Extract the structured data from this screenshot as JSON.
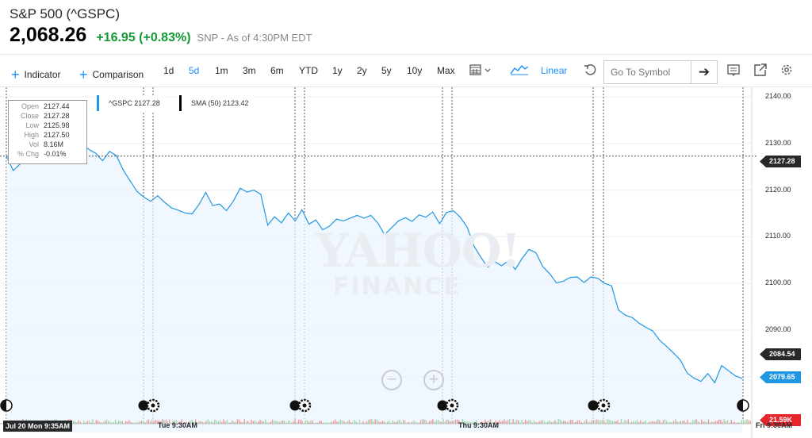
{
  "header": {
    "title": "S&P 500 (^GSPC)",
    "price": "2,068.26",
    "change": "+16.95 (+0.83%)",
    "as_of": "SNP - As of 4:30PM EDT"
  },
  "toolbar": {
    "indicator": "Indicator",
    "comparison": "Comparison",
    "ranges": [
      "1d",
      "5d",
      "1m",
      "3m",
      "6m",
      "YTD",
      "1y",
      "2y",
      "5y",
      "10y",
      "Max"
    ],
    "active_range": "5d",
    "scale": "Linear",
    "search_placeholder": "Go To Symbol",
    "go_arrow": "➔"
  },
  "tooltip": {
    "open_label": "Open",
    "open": "2127.44",
    "close_label": "Close",
    "close": "2127.28",
    "low_label": "Low",
    "low": "2125.98",
    "high_label": "High",
    "high": "2127.50",
    "vol_label": "Vol",
    "vol": "8.16M",
    "pct_label": "% Chg",
    "pct": "-0.01%"
  },
  "legend": {
    "price": "^GSPC 2127.28",
    "sma": "SMA (50) 2123.42"
  },
  "watermark": {
    "line1": "YAHOO!",
    "line2": "FINANCE"
  },
  "zoom": {
    "out": "−",
    "in": "+"
  },
  "flags": {
    "crosshair": "2127.28",
    "sma_last": "2084.54",
    "last_price": "2079.65",
    "volume": "21.59K"
  },
  "colors": {
    "line": "#1f97e3",
    "positive": "#109a33",
    "flag_dark": "#26282a",
    "flag_blue": "#1f97e3",
    "flag_red": "#e6252c"
  },
  "chart_data": {
    "type": "line",
    "title": "",
    "xlabel": "",
    "ylabel": "",
    "ylim": [
      2070,
      2140
    ],
    "y_ticks": [
      2140.0,
      2130.0,
      2120.0,
      2110.0,
      2100.0,
      2090.0,
      2080.0,
      2070.0
    ],
    "x_tick_labels": [
      "Jul 20 Mon 9:35AM",
      "Tue 9:30AM",
      "Thu 9:30AM",
      "Fri 9:30AM"
    ],
    "grid": true,
    "crosshair": 2127.28,
    "series": [
      {
        "name": "^GSPC",
        "color": "#1f97e3",
        "values": [
          2127.3,
          2124.2,
          2125.6,
          2127.9,
          2129.4,
          2128.6,
          2130.5,
          2129.7,
          2131.2,
          2130.3,
          2132.0,
          2129.9,
          2128.7,
          2127.9,
          2126.3,
          2128.3,
          2127.4,
          2124.3,
          2122.0,
          2119.7,
          2118.5,
          2117.6,
          2118.8,
          2117.4,
          2116.2,
          2115.7,
          2115.1,
          2114.9,
          2116.9,
          2119.5,
          2116.7,
          2117.0,
          2115.6,
          2117.6,
          2120.4,
          2119.6,
          2120.0,
          2119.1,
          2112.5,
          2114.3,
          2113.0,
          2115.1,
          2113.4,
          2115.8,
          2112.7,
          2113.6,
          2111.5,
          2112.3,
          2113.8,
          2113.4,
          2114.0,
          2114.6,
          2114.0,
          2114.6,
          2113.0,
          2110.5,
          2111.9,
          2113.4,
          2114.1,
          2113.3,
          2114.7,
          2114.2,
          2115.3,
          2112.8,
          2115.2,
          2115.6,
          2114.2,
          2112.1,
          2108.0,
          2105.6,
          2103.5,
          2104.7,
          2103.8,
          2104.8,
          2103.0,
          2105.4,
          2107.3,
          2106.6,
          2103.6,
          2102.1,
          2100.1,
          2100.5,
          2101.3,
          2101.4,
          2100.2,
          2101.4,
          2101.1,
          2100.0,
          2099.5,
          2094.3,
          2093.2,
          2092.7,
          2091.5,
          2090.6,
          2089.8,
          2087.8,
          2086.5,
          2085.1,
          2083.6,
          2080.8,
          2079.7,
          2079.0,
          2080.7,
          2078.7,
          2082.4,
          2081.3,
          2080.2,
          2079.65
        ]
      },
      {
        "name": "SMA (50)",
        "values": [
          2123.42,
          2084.54
        ]
      }
    ]
  }
}
